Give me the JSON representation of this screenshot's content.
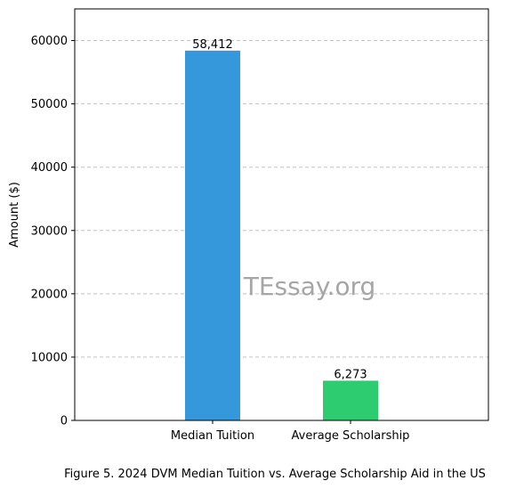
{
  "chart_data": {
    "type": "bar",
    "categories": [
      "Median Tuition",
      "Average Scholarship"
    ],
    "values": [
      58412,
      6273
    ],
    "value_labels": [
      "58,412",
      "6,273"
    ],
    "colors": [
      "#3498db",
      "#2ecc71"
    ],
    "title": "",
    "xlabel": "",
    "ylabel": "Amount ($)",
    "ylim": [
      0,
      65000
    ],
    "yticks": [
      0,
      10000,
      20000,
      30000,
      40000,
      50000,
      60000
    ],
    "grid": "horizontal dashed",
    "legend": "none"
  },
  "watermark": "TEssay.org",
  "caption": "Figure 5. 2024 DVM Median Tuition vs. Average Scholarship Aid in the US"
}
